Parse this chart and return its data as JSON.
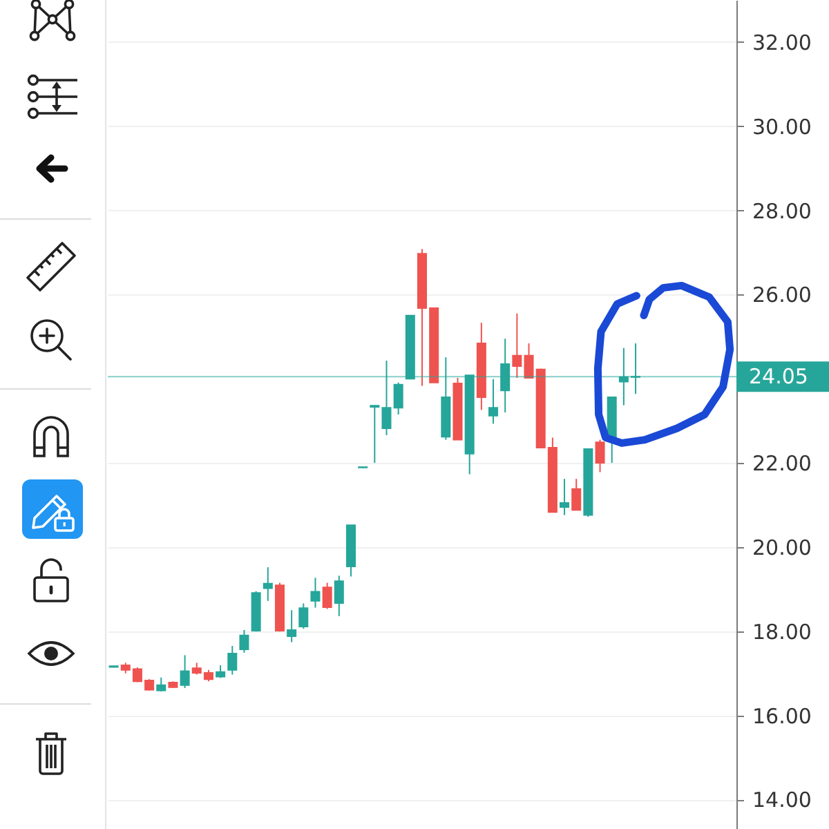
{
  "chart_data": {
    "type": "candlestick",
    "categories": [
      null,
      null,
      null,
      null,
      null,
      null,
      null,
      null,
      null,
      null,
      null,
      null,
      null,
      null,
      null,
      null,
      null,
      null,
      null,
      null,
      null,
      null,
      null,
      null,
      null,
      null,
      null,
      null,
      null,
      null,
      null,
      null,
      null,
      null,
      null,
      null,
      null,
      null,
      null,
      null,
      null,
      null,
      null,
      null,
      null,
      null,
      null,
      null,
      null,
      null,
      null,
      null,
      null
    ],
    "ohlc": [
      [
        17.15,
        17.18,
        17.14,
        17.17
      ],
      [
        17.19,
        17.25,
        17.0,
        17.08
      ],
      [
        17.1,
        17.14,
        16.79,
        16.81
      ],
      [
        16.83,
        16.86,
        16.59,
        16.61
      ],
      [
        16.59,
        16.9,
        16.57,
        16.72
      ],
      [
        16.78,
        16.81,
        16.65,
        16.67
      ],
      [
        16.72,
        17.43,
        16.65,
        17.05
      ],
      [
        17.12,
        17.25,
        16.97,
        17.01
      ],
      [
        17.01,
        17.08,
        16.81,
        16.86
      ],
      [
        16.92,
        17.19,
        16.89,
        17.03
      ],
      [
        17.08,
        17.65,
        16.97,
        17.47
      ],
      [
        17.57,
        18.03,
        17.49,
        17.9
      ],
      [
        18.01,
        18.95,
        17.99,
        18.91
      ],
      [
        19.02,
        19.52,
        18.72,
        19.13
      ],
      [
        19.09,
        19.15,
        17.99,
        18.01
      ],
      [
        17.88,
        18.5,
        17.74,
        18.03
      ],
      [
        18.11,
        18.66,
        18.06,
        18.55
      ],
      [
        18.72,
        19.27,
        18.56,
        18.94
      ],
      [
        19.04,
        19.15,
        18.53,
        18.57
      ],
      [
        18.67,
        19.32,
        18.36,
        19.19
      ],
      [
        19.54,
        20.52,
        19.3,
        20.52
      ],
      [
        21.89,
        21.9,
        21.88,
        21.9
      ],
      [
        23.33,
        23.37,
        22.0,
        23.36
      ],
      [
        22.82,
        24.43,
        22.66,
        23.31
      ],
      [
        23.31,
        23.91,
        23.15,
        23.86
      ],
      [
        24.0,
        25.5,
        24.0,
        25.5
      ],
      [
        26.97,
        27.08,
        23.83,
        25.68
      ],
      [
        25.68,
        25.68,
        23.91,
        23.91
      ],
      [
        22.62,
        24.51,
        22.55,
        23.56
      ],
      [
        23.89,
        24.02,
        22.55,
        22.55
      ],
      [
        22.22,
        24.08,
        21.73,
        24.08
      ],
      [
        24.84,
        25.33,
        23.26,
        23.56
      ],
      [
        23.12,
        23.99,
        22.93,
        23.31
      ],
      [
        23.72,
        24.95,
        23.2,
        24.35
      ],
      [
        24.55,
        25.55,
        24.02,
        24.3
      ],
      [
        24.55,
        24.84,
        24.02,
        24.02
      ],
      [
        24.22,
        24.24,
        22.36,
        22.36
      ],
      [
        22.36,
        22.6,
        20.83,
        20.83
      ],
      [
        20.95,
        21.62,
        20.76,
        21.05
      ],
      [
        21.38,
        21.62,
        20.88,
        20.88
      ],
      [
        20.76,
        22.33,
        20.72,
        22.33
      ],
      [
        22.49,
        22.55,
        21.78,
        22.0
      ],
      [
        22.55,
        23.56,
        22.0,
        23.56
      ],
      [
        23.93,
        24.73,
        23.37,
        24.04
      ],
      [
        24.04,
        24.84,
        23.64,
        24.05
      ],
      null,
      null,
      null,
      null,
      null,
      null,
      null,
      null
    ],
    "colors": [
      "#26a69a",
      "#ef5350",
      "#ef5350",
      "#ef5350",
      "#26a69a",
      "#ef5350",
      "#26a69a",
      "#ef5350",
      "#ef5350",
      "#26a69a",
      "#26a69a",
      "#26a69a",
      "#26a69a",
      "#26a69a",
      "#ef5350",
      "#26a69a",
      "#26a69a",
      "#26a69a",
      "#ef5350",
      "#26a69a",
      "#26a69a",
      "#26a69a",
      "#26a69a",
      "#26a69a",
      "#26a69a",
      "#26a69a",
      "#ef5350",
      "#ef5350",
      "#26a69a",
      "#ef5350",
      "#26a69a",
      "#ef5350",
      "#26a69a",
      "#26a69a",
      "#ef5350",
      "#ef5350",
      "#ef5350",
      "#ef5350",
      "#26a69a",
      "#ef5350",
      "#26a69a",
      "#ef5350",
      "#26a69a",
      "#26a69a",
      "#26a69a",
      null,
      null,
      null,
      null,
      null,
      null,
      null,
      null
    ],
    "ylim": [
      13.3,
      33.0
    ],
    "yticks": [
      {
        "value": 14,
        "label": "14.00"
      },
      {
        "value": 16,
        "label": "16.00"
      },
      {
        "value": 18,
        "label": "18.00"
      },
      {
        "value": 20,
        "label": "20.00"
      },
      {
        "value": 22,
        "label": "22.00"
      },
      {
        "value": 26,
        "label": "26.00"
      },
      {
        "value": 28,
        "label": "28.00"
      },
      {
        "value": 30,
        "label": "30.00"
      },
      {
        "value": 32,
        "label": "32.00"
      }
    ],
    "ref_lines": [
      {
        "axis": "y",
        "value": 24.05,
        "label": "24.05",
        "color": "#26a69a"
      }
    ],
    "grid": "y",
    "tick_labels": "y"
  }
}
